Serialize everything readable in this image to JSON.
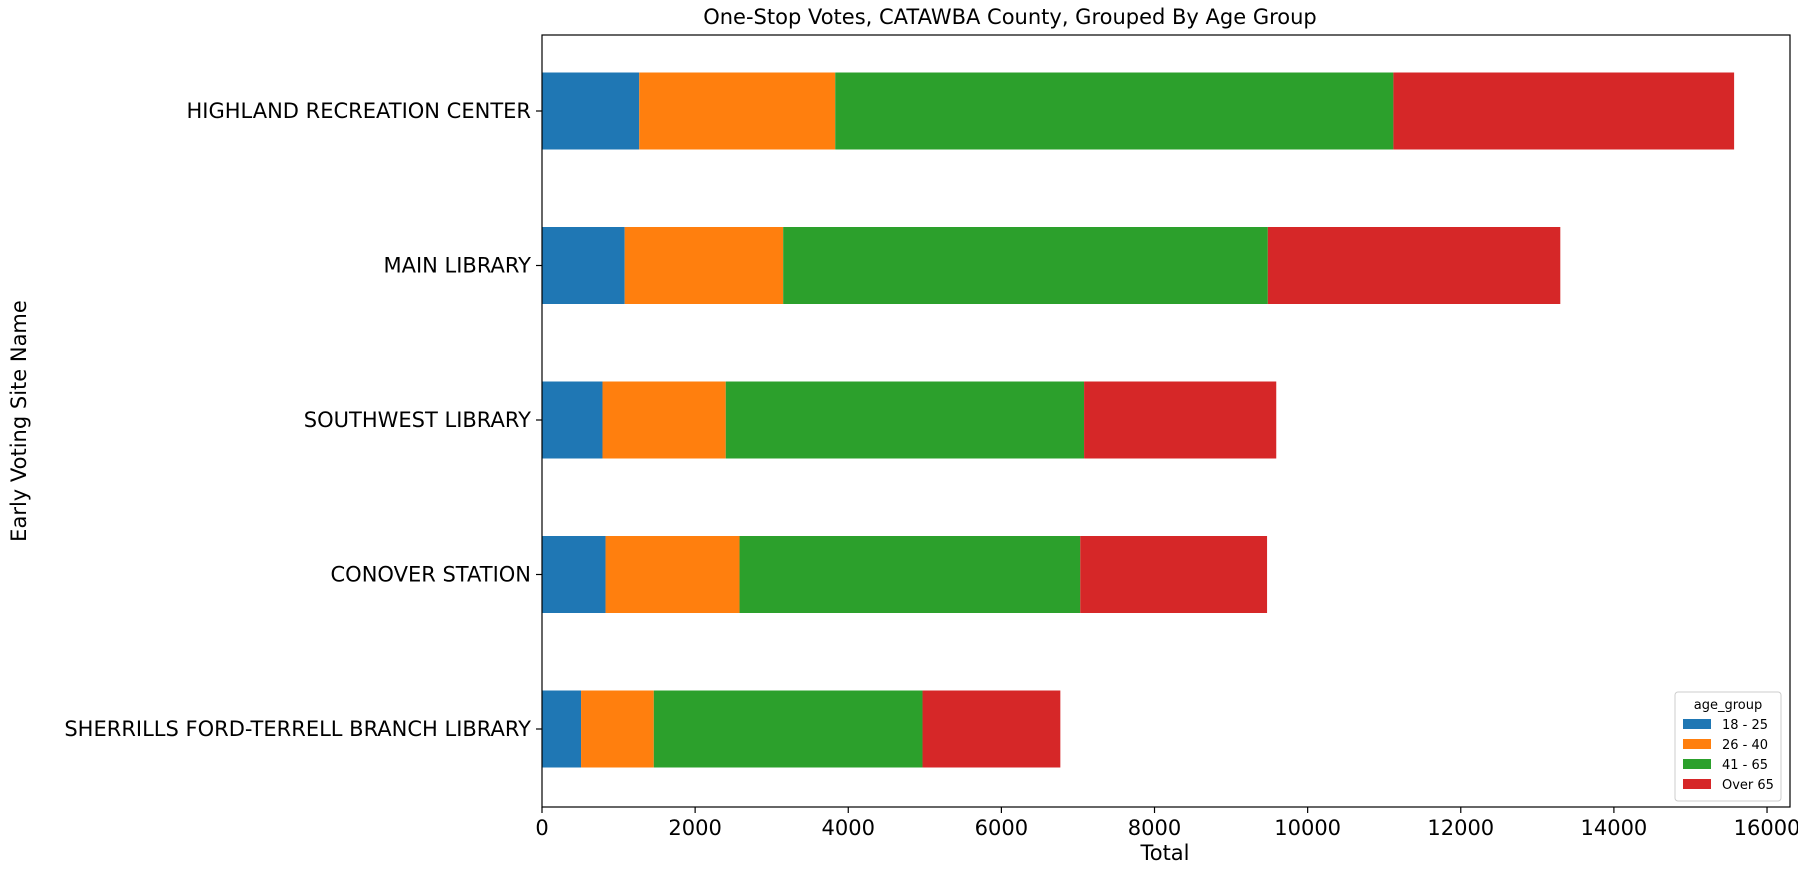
{
  "chart_data": {
    "type": "bar",
    "orientation": "horizontal",
    "stacked": true,
    "title": "One-Stop Votes, CATAWBA County, Grouped By Age Group",
    "xlabel": "Total",
    "ylabel": "Early Voting Site Name",
    "xlim": [
      0,
      16300
    ],
    "xticks": [
      0,
      2000,
      4000,
      6000,
      8000,
      10000,
      12000,
      14000,
      16000
    ],
    "grid": false,
    "legend_title": "age_group",
    "legend_position": "lower-right",
    "categories": [
      "HIGHLAND RECREATION CENTER",
      "MAIN LIBRARY",
      "SOUTHWEST LIBRARY",
      "CONOVER STATION",
      "SHERRILLS FORD-TERRELL BRANCH LIBRARY"
    ],
    "series": [
      {
        "name": "18 - 25",
        "color": "#1f77b4",
        "values": [
          1270,
          1080,
          790,
          830,
          510
        ]
      },
      {
        "name": "26 - 40",
        "color": "#ff7f0e",
        "values": [
          2560,
          2070,
          1610,
          1750,
          950
        ]
      },
      {
        "name": "41 - 65",
        "color": "#2ca02c",
        "values": [
          7290,
          6330,
          4680,
          4450,
          3510
        ]
      },
      {
        "name": "Over 65",
        "color": "#d62728",
        "values": [
          4450,
          3820,
          2510,
          2440,
          1800
        ]
      }
    ]
  }
}
